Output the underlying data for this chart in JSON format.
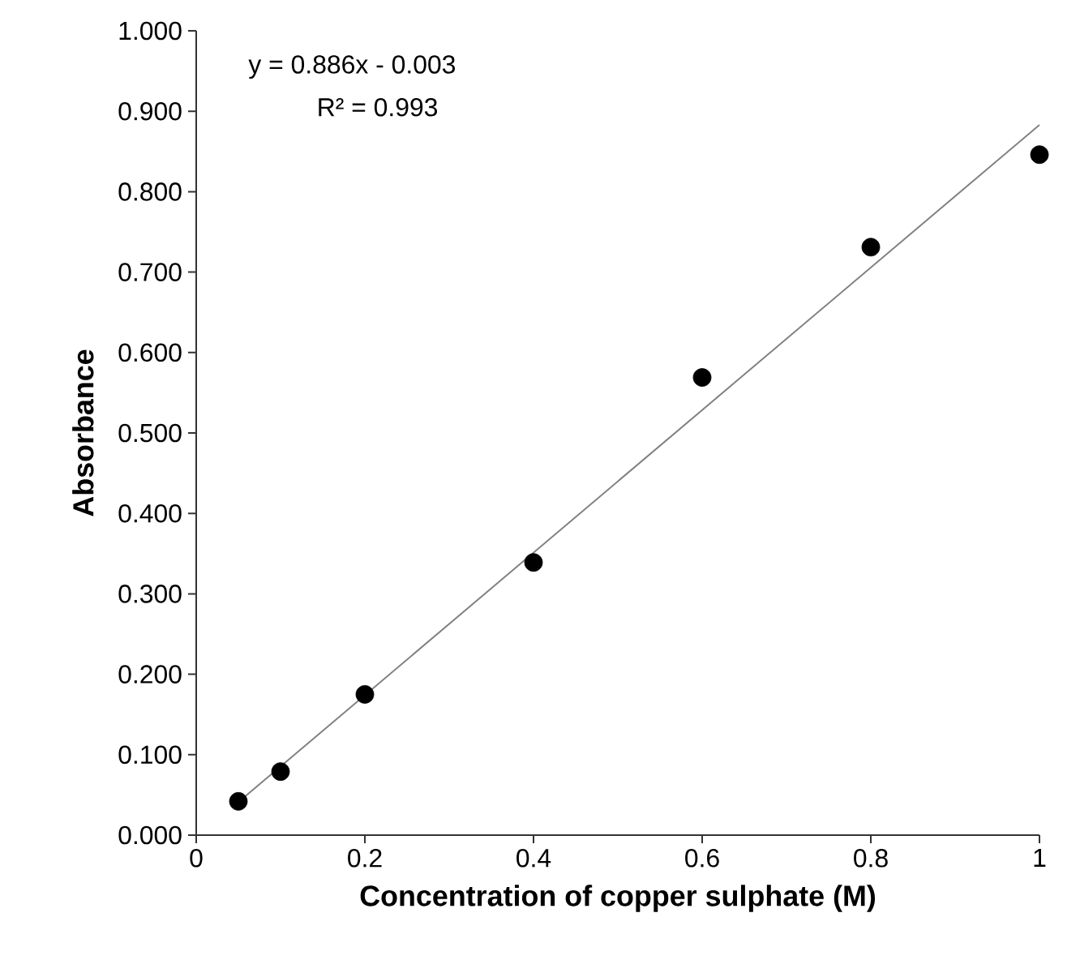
{
  "chart_data": {
    "type": "scatter",
    "xlabel": "Concentration of copper sulphate (M)",
    "ylabel": "Absorbance",
    "marker": "circle",
    "annotations": [
      "y = 0.886x - 0.003",
      "R² = 0.993"
    ],
    "series": [
      {
        "color": "#000000",
        "x": [
          0.05,
          0.1,
          0.2,
          0.4,
          0.6,
          0.8,
          1.0
        ],
        "values": [
          0.042,
          0.079,
          0.175,
          0.339,
          0.569,
          0.731,
          0.846
        ]
      },
      {
        "type": "line",
        "color": "#808080",
        "marker": "none",
        "x": [
          0.05,
          1.0
        ],
        "values": [
          0.041,
          0.883
        ]
      }
    ],
    "xlim": [
      0,
      1
    ],
    "xticks": [
      0,
      0.2,
      0.4,
      0.6,
      0.8,
      1
    ],
    "ylim": [
      0,
      1
    ],
    "yticks": [
      {
        "value": 0,
        "label": "0.000"
      },
      {
        "value": 0.1,
        "label": "0.100"
      },
      {
        "value": 0.2,
        "label": "0.200"
      },
      {
        "value": 0.3,
        "label": "0.300"
      },
      {
        "value": 0.4,
        "label": "0.400"
      },
      {
        "value": 0.5,
        "label": "0.500"
      },
      {
        "value": 0.6,
        "label": "0.600"
      },
      {
        "value": 0.7,
        "label": "0.700"
      },
      {
        "value": 0.8,
        "label": "0.800"
      },
      {
        "value": 0.9,
        "label": "0.900"
      },
      {
        "value": 1,
        "label": "1.000"
      }
    ]
  }
}
